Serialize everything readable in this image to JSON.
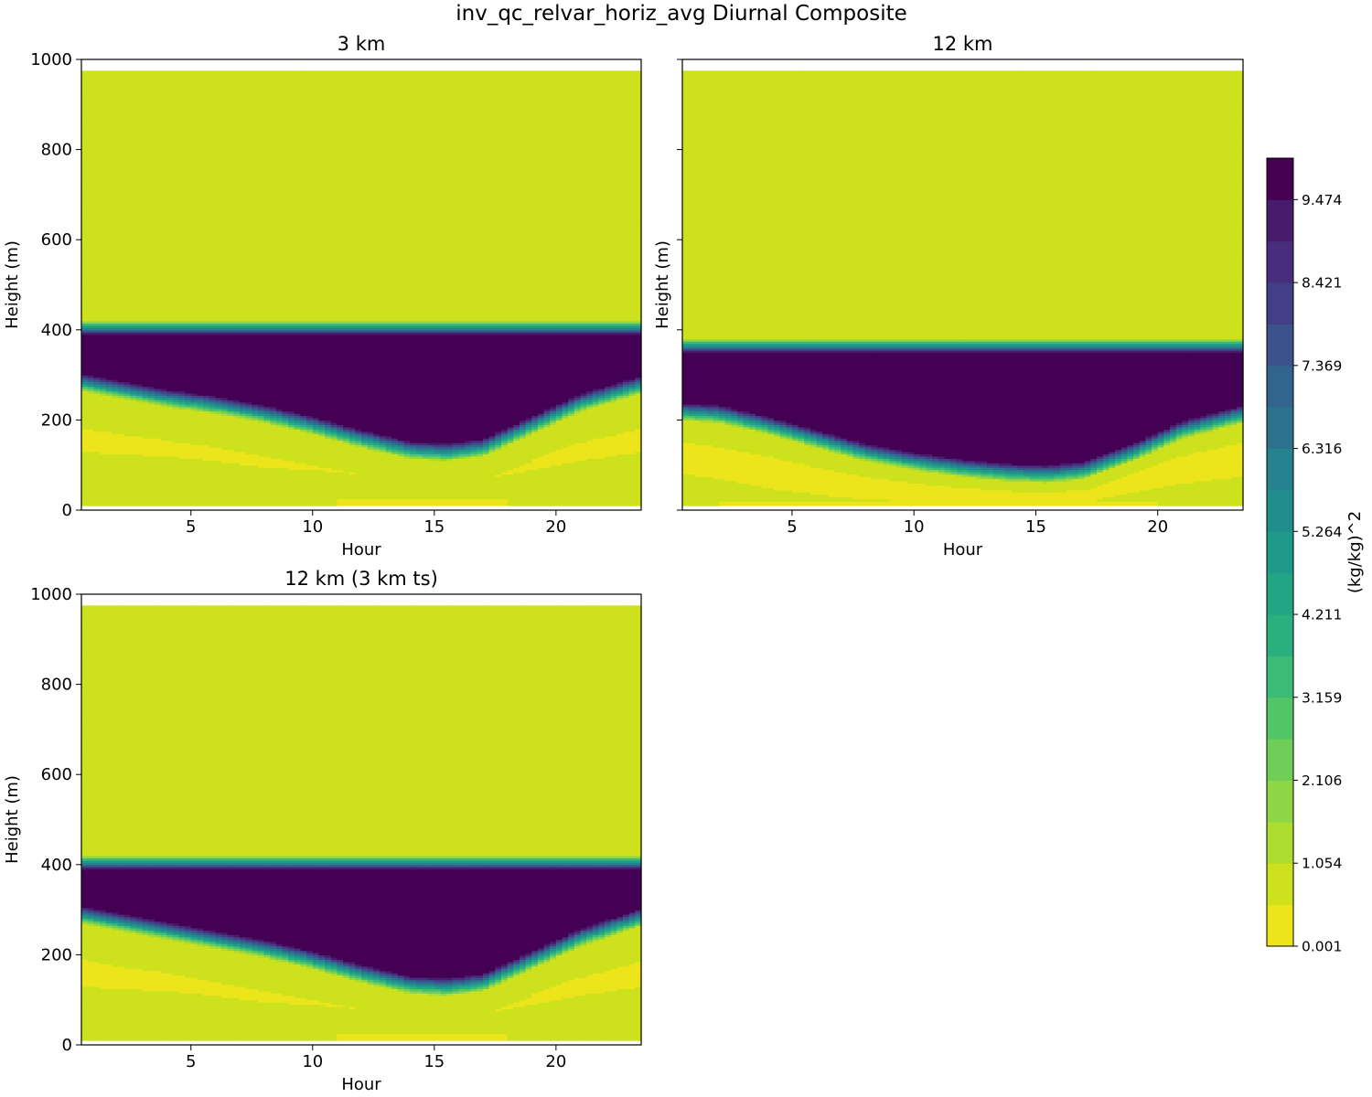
{
  "figure": {
    "title": "inv_qc_relvar_horiz_avg Diurnal Composite"
  },
  "colorbar": {
    "label": "(kg/kg)^2",
    "tick_labels": [
      "0.001",
      "1.054",
      "2.106",
      "3.159",
      "4.211",
      "5.264",
      "6.316",
      "7.369",
      "8.421",
      "9.474"
    ],
    "tick_values": [
      0.001,
      1.054,
      2.106,
      3.159,
      4.211,
      5.264,
      6.316,
      7.369,
      8.421,
      9.474
    ],
    "min": 0.001,
    "max": 10.0,
    "levels": 19,
    "colors": [
      "#ece51b",
      "#cde11d",
      "#addc30",
      "#8ed645",
      "#6ece58",
      "#52c569",
      "#3bbb75",
      "#2ab07f",
      "#21a585",
      "#1f9a8a",
      "#228d8d",
      "#26828e",
      "#2c728e",
      "#32658e",
      "#3b528b",
      "#433e85",
      "#472d7b",
      "#481b6d",
      "#440154"
    ]
  },
  "chart_data": [
    {
      "type": "heatmap",
      "title": "3 km",
      "xlabel": "Hour",
      "ylabel": "Height (m)",
      "xlim": [
        0.5,
        23.5
      ],
      "ylim": [
        0,
        1000
      ],
      "x_ticks": [
        5,
        10,
        15,
        20
      ],
      "y_ticks": [
        0,
        200,
        400,
        600,
        800,
        1000
      ],
      "z_range": [
        0.001,
        10.0
      ],
      "data_top": 975,
      "data_bottom": 10,
      "profile": {
        "hours": [
          0.5,
          2,
          4,
          6,
          8,
          10,
          12,
          14,
          15.5,
          17,
          19,
          21,
          23.5
        ],
        "cloud_top": [
          405,
          405,
          405,
          405,
          405,
          405,
          405,
          405,
          405,
          405,
          405,
          405,
          405
        ],
        "cloud_base": [
          265,
          250,
          230,
          215,
          195,
          170,
          140,
          115,
          110,
          120,
          170,
          220,
          260
        ],
        "max_band_bottom": [
          180,
          170,
          155,
          140,
          120,
          100,
          80,
          65,
          62,
          68,
          110,
          150,
          180
        ],
        "max_band_top": [
          130,
          125,
          120,
          110,
          95,
          90,
          80,
          70,
          65,
          70,
          90,
          110,
          130
        ],
        "surface_band_hours": [
          11,
          18
        ],
        "surface_band_top": 25
      }
    },
    {
      "type": "heatmap",
      "title": "12 km",
      "xlabel": "Hour",
      "ylabel": "Height (m)",
      "xlim": [
        0.5,
        23.5
      ],
      "ylim": [
        0,
        1000
      ],
      "x_ticks": [
        5,
        10,
        15,
        20
      ],
      "y_ticks": [
        0,
        200,
        400,
        600,
        800,
        1000
      ],
      "z_range": [
        0.001,
        10.0
      ],
      "data_top": 975,
      "data_bottom": 10,
      "profile": {
        "hours": [
          0.5,
          2,
          4,
          6,
          8,
          10,
          12,
          14,
          15.5,
          17,
          19,
          21,
          23.5
        ],
        "cloud_top": [
          365,
          365,
          365,
          365,
          365,
          365,
          365,
          365,
          365,
          365,
          365,
          365,
          365
        ],
        "cloud_base": [
          200,
          195,
          170,
          140,
          110,
          90,
          75,
          65,
          62,
          70,
          110,
          160,
          195
        ],
        "max_band_bottom": [
          150,
          140,
          120,
          95,
          75,
          60,
          50,
          42,
          40,
          45,
          80,
          120,
          150
        ],
        "max_band_top": [
          80,
          70,
          50,
          35,
          25,
          20,
          18,
          16,
          15,
          18,
          40,
          60,
          75
        ],
        "surface_band_hours": [
          2,
          20
        ],
        "surface_band_top": 20
      }
    },
    {
      "type": "heatmap",
      "title": "12 km (3 km ts)",
      "xlabel": "Hour",
      "ylabel": "Height (m)",
      "xlim": [
        0.5,
        23.5
      ],
      "ylim": [
        0,
        1000
      ],
      "x_ticks": [
        5,
        10,
        15,
        20
      ],
      "y_ticks": [
        0,
        200,
        400,
        600,
        800,
        1000
      ],
      "z_range": [
        0.001,
        10.0
      ],
      "data_top": 975,
      "data_bottom": 10,
      "profile": {
        "hours": [
          0.5,
          2,
          4,
          6,
          8,
          10,
          12,
          14,
          15.5,
          17,
          19,
          21,
          23.5
        ],
        "cloud_top": [
          405,
          405,
          405,
          405,
          405,
          405,
          405,
          405,
          405,
          405,
          405,
          405,
          405
        ],
        "cloud_base": [
          270,
          255,
          235,
          215,
          195,
          170,
          140,
          115,
          110,
          120,
          170,
          220,
          265
        ],
        "max_band_bottom": [
          190,
          175,
          160,
          140,
          120,
          100,
          80,
          65,
          62,
          68,
          110,
          150,
          185
        ],
        "max_band_top": [
          130,
          125,
          120,
          110,
          95,
          90,
          80,
          70,
          65,
          70,
          90,
          110,
          130
        ],
        "surface_band_hours": [
          11,
          18
        ],
        "surface_band_top": 25
      }
    }
  ]
}
